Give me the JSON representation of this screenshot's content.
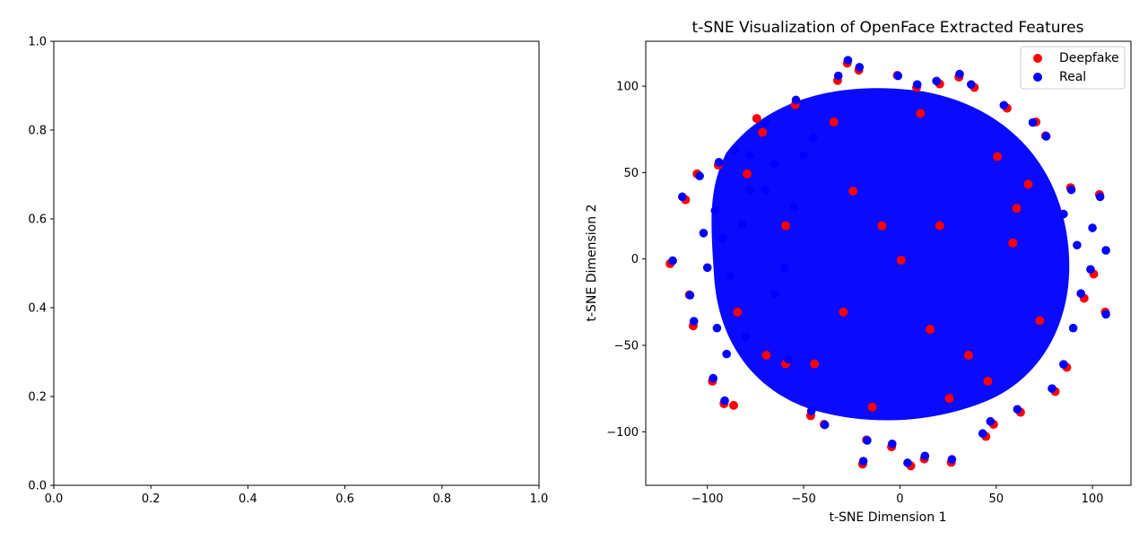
{
  "chart_data": [
    {
      "type": "empty",
      "title": "",
      "xlabel": "",
      "ylabel": "",
      "xlim": [
        0.0,
        1.0
      ],
      "ylim": [
        0.0,
        1.0
      ],
      "x_ticks": [
        "0.0",
        "0.2",
        "0.4",
        "0.6",
        "0.8",
        "1.0"
      ],
      "y_ticks": [
        "0.0",
        "0.2",
        "0.4",
        "0.6",
        "0.8",
        "1.0"
      ]
    },
    {
      "type": "scatter",
      "title": "t-SNE Visualization of OpenFace Extracted Features",
      "xlabel": "t-SNE Dimension 1",
      "ylabel": "t-SNE Dimension 2",
      "xlim": [
        -132,
        120
      ],
      "ylim": [
        -131,
        126
      ],
      "x_ticks": [
        "−100",
        "−50",
        "0",
        "50",
        "100"
      ],
      "y_ticks": [
        "−100",
        "−50",
        "0",
        "50",
        "100"
      ],
      "legend_position": "top-right",
      "series": [
        {
          "name": "Deepfake",
          "color": "#ff0000",
          "points": [
            [
              -120,
              -2
            ],
            [
              -112,
              35
            ],
            [
              -110,
              -20
            ],
            [
              -108,
              -38
            ],
            [
              -106,
              50
            ],
            [
              -98,
              -70
            ],
            [
              -95,
              55
            ],
            [
              -92,
              -83
            ],
            [
              -87,
              -84
            ],
            [
              -75,
              82
            ],
            [
              -72,
              74
            ],
            [
              -60,
              -60
            ],
            [
              -55,
              90
            ],
            [
              -47,
              -90
            ],
            [
              -40,
              -95
            ],
            [
              -33,
              104
            ],
            [
              -28,
              114
            ],
            [
              -22,
              110
            ],
            [
              -20,
              -118
            ],
            [
              -18,
              -104
            ],
            [
              -5,
              -108
            ],
            [
              -2,
              107
            ],
            [
              5,
              -119
            ],
            [
              8,
              100
            ],
            [
              12,
              -115
            ],
            [
              20,
              102
            ],
            [
              26,
              -117
            ],
            [
              30,
              106
            ],
            [
              38,
              100
            ],
            [
              44,
              -102
            ],
            [
              48,
              -95
            ],
            [
              55,
              88
            ],
            [
              62,
              -88
            ],
            [
              70,
              80
            ],
            [
              75,
              72
            ],
            [
              80,
              -76
            ],
            [
              86,
              -62
            ],
            [
              88,
              42
            ],
            [
              95,
              -22
            ],
            [
              100,
              -8
            ],
            [
              103,
              38
            ],
            [
              106,
              -30
            ],
            [
              66,
              44
            ],
            [
              72,
              -35
            ],
            [
              60,
              30
            ],
            [
              -80,
              50
            ],
            [
              -85,
              -30
            ],
            [
              -70,
              -55
            ],
            [
              50,
              60
            ],
            [
              45,
              -70
            ],
            [
              -35,
              80
            ],
            [
              -15,
              -85
            ],
            [
              10,
              85
            ],
            [
              25,
              -80
            ],
            [
              -45,
              -60
            ],
            [
              35,
              -55
            ],
            [
              -60,
              20
            ],
            [
              58,
              10
            ],
            [
              -25,
              40
            ],
            [
              15,
              -40
            ],
            [
              0,
              0
            ],
            [
              -10,
              20
            ],
            [
              20,
              20
            ],
            [
              -30,
              -30
            ]
          ]
        },
        {
          "name": "Real",
          "color": "#0000ff",
          "points": [
            [
              -118,
              -1
            ],
            [
              -113,
              36
            ],
            [
              -109,
              -21
            ],
            [
              -107,
              -36
            ],
            [
              -104,
              48
            ],
            [
              -97,
              -69
            ],
            [
              -94,
              56
            ],
            [
              -91,
              -82
            ],
            [
              -86,
              63
            ],
            [
              -78,
              60
            ],
            [
              -70,
              79
            ],
            [
              -65,
              55
            ],
            [
              -58,
              -58
            ],
            [
              -54,
              92
            ],
            [
              -46,
              -88
            ],
            [
              -39,
              -96
            ],
            [
              -32,
              106
            ],
            [
              -27,
              115
            ],
            [
              -21,
              111
            ],
            [
              -19,
              -117
            ],
            [
              -17,
              -105
            ],
            [
              -4,
              -107
            ],
            [
              -1,
              106
            ],
            [
              4,
              -118
            ],
            [
              9,
              101
            ],
            [
              13,
              -114
            ],
            [
              19,
              103
            ],
            [
              27,
              -116
            ],
            [
              31,
              107
            ],
            [
              37,
              101
            ],
            [
              43,
              -101
            ],
            [
              47,
              -94
            ],
            [
              54,
              89
            ],
            [
              61,
              -87
            ],
            [
              69,
              79
            ],
            [
              76,
              71
            ],
            [
              79,
              -75
            ],
            [
              85,
              -61
            ],
            [
              89,
              40
            ],
            [
              94,
              -20
            ],
            [
              99,
              -6
            ],
            [
              104,
              36
            ],
            [
              107,
              -32
            ],
            [
              107,
              5
            ],
            [
              100,
              18
            ],
            [
              92,
              8
            ],
            [
              90,
              -40
            ],
            [
              85,
              26
            ],
            [
              -92,
              12
            ],
            [
              -96,
              28
            ],
            [
              -88,
              -10
            ],
            [
              -100,
              -5
            ],
            [
              -102,
              15
            ],
            [
              -95,
              -40
            ],
            [
              -90,
              -55
            ],
            [
              -80,
              -45
            ],
            [
              -78,
              40
            ],
            [
              -82,
              20
            ],
            [
              -70,
              40
            ],
            [
              -65,
              -20
            ],
            [
              -60,
              -5
            ],
            [
              -55,
              30
            ],
            [
              -50,
              60
            ],
            [
              -45,
              70
            ]
          ]
        }
      ]
    }
  ]
}
